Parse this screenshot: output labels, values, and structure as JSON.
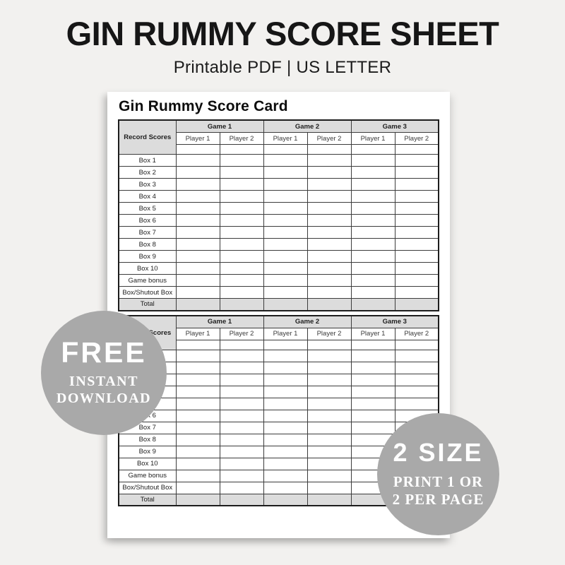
{
  "header": {
    "title": "GIN RUMMY SCORE SHEET",
    "subtitle": "Printable PDF | US LETTER"
  },
  "sheet": {
    "title": "Gin Rummy Score Card",
    "copies": 2,
    "table": {
      "corner_label": "Record Scores",
      "games": [
        "Game 1",
        "Game 2",
        "Game 3"
      ],
      "players": [
        "Player 1",
        "Player 2"
      ],
      "score_rows": [
        "Box 1",
        "Box 2",
        "Box 3",
        "Box 4",
        "Box 5",
        "Box 6",
        "Box 7",
        "Box 8",
        "Box 9",
        "Box 10",
        "Game bonus",
        "Box/Shutout Box"
      ],
      "total_label": "Total"
    }
  },
  "badges": {
    "free": {
      "headline": "FREE",
      "line2": "INSTANT",
      "line3": "DOWNLOAD"
    },
    "size": {
      "headline": "2 SIZE",
      "line2": "PRINT 1 OR",
      "line3": "2 PER PAGE"
    }
  },
  "colors": {
    "background": "#f2f1ef",
    "page": "#ffffff",
    "table_header_fill": "#dcdcdc",
    "badge_fill": "#a9a9a9",
    "badge_text": "#ffffff",
    "title_text": "#161616"
  }
}
